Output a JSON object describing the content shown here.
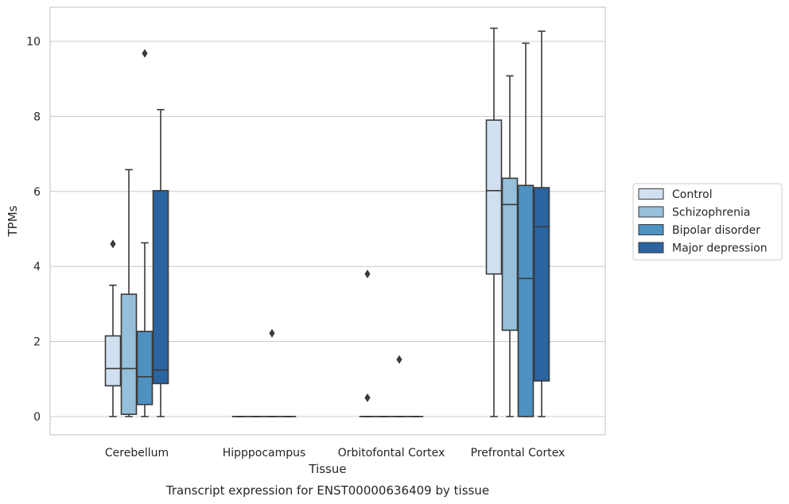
{
  "chart_data": {
    "type": "box",
    "title": "",
    "caption": "Transcript expression for ENST00000636409 by tissue",
    "xlabel": "Tissue",
    "ylabel": "TPMs",
    "ylim": [
      -0.5,
      10.9
    ],
    "yticks": [
      "0",
      "2",
      "4",
      "6",
      "8",
      "10"
    ],
    "categories": [
      "Cerebellum",
      "Hipppocampus",
      "Orbitofontal Cortex",
      "Prefrontal Cortex"
    ],
    "grid": "horizontal",
    "legend_position": "right",
    "colors": {
      "Control": "#d0e0f0",
      "Schizophrenia": "#95bfdb",
      "Bipolar disorder": "#4e91c3",
      "Major depression": "#2a64a1",
      "line": "#3a3a3a",
      "grid": "#cccccc"
    },
    "series": [
      {
        "name": "Control",
        "boxes": [
          {
            "whisker_low": 0,
            "q1": 0.82,
            "median": 1.28,
            "q3": 2.15,
            "whisker_high": 3.5,
            "outliers": [
              4.6
            ]
          },
          {
            "whisker_low": 0,
            "q1": 0,
            "median": 0,
            "q3": 0,
            "whisker_high": 0,
            "outliers": []
          },
          {
            "whisker_low": 0,
            "q1": 0,
            "median": 0,
            "q3": 0,
            "whisker_high": 0,
            "outliers": [
              0.5,
              3.8
            ]
          },
          {
            "whisker_low": 0,
            "q1": 3.8,
            "median": 6.02,
            "q3": 7.9,
            "whisker_high": 10.35,
            "outliers": []
          }
        ]
      },
      {
        "name": "Schizophrenia",
        "boxes": [
          {
            "whisker_low": 0,
            "q1": 0.06,
            "median": 1.28,
            "q3": 3.26,
            "whisker_high": 6.58,
            "outliers": []
          },
          {
            "whisker_low": 0,
            "q1": 0,
            "median": 0,
            "q3": 0,
            "whisker_high": 0,
            "outliers": []
          },
          {
            "whisker_low": 0,
            "q1": 0,
            "median": 0,
            "q3": 0,
            "whisker_high": 0,
            "outliers": []
          },
          {
            "whisker_low": 0,
            "q1": 2.3,
            "median": 5.65,
            "q3": 6.35,
            "whisker_high": 9.08,
            "outliers": []
          }
        ]
      },
      {
        "name": "Bipolar disorder",
        "boxes": [
          {
            "whisker_low": 0,
            "q1": 0.32,
            "median": 1.06,
            "q3": 2.27,
            "whisker_high": 4.63,
            "outliers": [
              9.68
            ]
          },
          {
            "whisker_low": 0,
            "q1": 0,
            "median": 0,
            "q3": 0,
            "whisker_high": 0,
            "outliers": [
              2.22
            ]
          },
          {
            "whisker_low": 0,
            "q1": 0,
            "median": 0,
            "q3": 0,
            "whisker_high": 0,
            "outliers": [
              1.52
            ]
          },
          {
            "whisker_low": 0,
            "q1": 0,
            "median": 3.68,
            "q3": 6.16,
            "whisker_high": 9.95,
            "outliers": []
          }
        ]
      },
      {
        "name": "Major depression",
        "boxes": [
          {
            "whisker_low": 0,
            "q1": 0.88,
            "median": 1.24,
            "q3": 6.02,
            "whisker_high": 8.18,
            "outliers": []
          },
          {
            "whisker_low": 0,
            "q1": 0,
            "median": 0,
            "q3": 0,
            "whisker_high": 0,
            "outliers": []
          },
          {
            "whisker_low": 0,
            "q1": 0,
            "median": 0,
            "q3": 0,
            "whisker_high": 0,
            "outliers": []
          },
          {
            "whisker_low": 0,
            "q1": 0.95,
            "median": 5.06,
            "q3": 6.1,
            "whisker_high": 10.27,
            "outliers": []
          }
        ]
      }
    ]
  }
}
